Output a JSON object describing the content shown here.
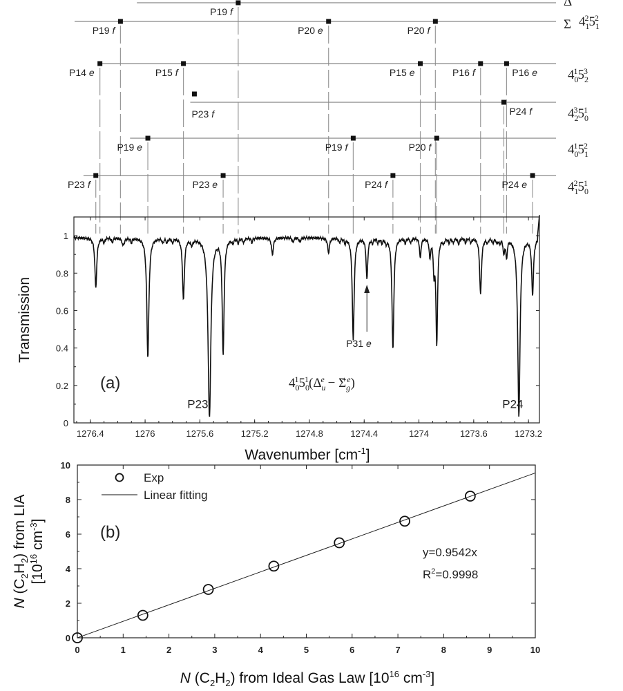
{
  "chart_data": [
    {
      "type": "line",
      "panel_label": "(a)",
      "xlabel_main": "Wavenumber [cm",
      "xlabel_sup": "-1",
      "xlabel_end": "]",
      "ylabel": "Transmission",
      "xlim": [
        1276.52,
        1273.12
      ],
      "ylim": [
        0,
        1.1
      ],
      "x_ticks": [
        {
          "v": 1276.4,
          "t": "1276.4"
        },
        {
          "v": 1276.0,
          "t": "1276"
        },
        {
          "v": 1275.6,
          "t": "1275.6"
        },
        {
          "v": 1275.2,
          "t": "1275.2"
        },
        {
          "v": 1274.8,
          "t": "1274.8"
        },
        {
          "v": 1274.4,
          "t": "1274.4"
        },
        {
          "v": 1274.0,
          "t": "1274"
        },
        {
          "v": 1273.6,
          "t": "1273.6"
        },
        {
          "v": 1273.2,
          "t": "1273.2"
        }
      ],
      "y_ticks": [
        {
          "v": 0,
          "t": "0"
        },
        {
          "v": 0.2,
          "t": "0.2"
        },
        {
          "v": 0.4,
          "t": "0.4"
        },
        {
          "v": 0.6,
          "t": "0.6"
        },
        {
          "v": 0.8,
          "t": "0.8"
        },
        {
          "v": 1.0,
          "t": "1"
        }
      ],
      "baseline": 0.99,
      "absorption_lines": [
        {
          "x": 1276.36,
          "depth": 0.27,
          "w": 0.008
        },
        {
          "x": 1276.16,
          "depth": 0.04,
          "w": 0.01
        },
        {
          "x": 1275.98,
          "depth": 0.64,
          "w": 0.009
        },
        {
          "x": 1275.72,
          "depth": 0.33,
          "w": 0.008
        },
        {
          "x": 1275.66,
          "depth": 0.03,
          "w": 0.01
        },
        {
          "x": 1275.53,
          "depth": 0.96,
          "w": 0.012
        },
        {
          "x": 1275.43,
          "depth": 0.62,
          "w": 0.008
        },
        {
          "x": 1275.07,
          "depth": 0.09,
          "w": 0.008
        },
        {
          "x": 1274.66,
          "depth": 0.08,
          "w": 0.008
        },
        {
          "x": 1274.48,
          "depth": 0.55,
          "w": 0.008
        },
        {
          "x": 1274.38,
          "depth": 0.22,
          "w": 0.007
        },
        {
          "x": 1274.19,
          "depth": 0.6,
          "w": 0.008
        },
        {
          "x": 1273.99,
          "depth": 0.11,
          "w": 0.006
        },
        {
          "x": 1273.92,
          "depth": 0.1,
          "w": 0.006
        },
        {
          "x": 1273.89,
          "depth": 0.17,
          "w": 0.006
        },
        {
          "x": 1273.87,
          "depth": 0.57,
          "w": 0.007
        },
        {
          "x": 1273.71,
          "depth": 0.03,
          "w": 0.008
        },
        {
          "x": 1273.55,
          "depth": 0.3,
          "w": 0.008
        },
        {
          "x": 1273.38,
          "depth": 0.08,
          "w": 0.006
        },
        {
          "x": 1273.36,
          "depth": 0.1,
          "w": 0.006
        },
        {
          "x": 1273.27,
          "depth": 0.95,
          "w": 0.01
        },
        {
          "x": 1273.17,
          "depth": 0.3,
          "w": 0.008
        }
      ],
      "small_lines": [
        1276.3,
        1276.24,
        1276.1,
        1275.87,
        1275.84,
        1275.8,
        1275.36,
        1275.32,
        1275.28,
        1275.22,
        1274.92,
        1274.87,
        1274.58,
        1274.54,
        1274.34,
        1274.3,
        1274.27,
        1274.24,
        1274.1,
        1274.06,
        1273.82,
        1273.78,
        1273.75,
        1273.66,
        1273.62,
        1273.5,
        1273.46,
        1273.43,
        1273.41
      ],
      "peak_labels": [
        {
          "x": 1275.53,
          "dx": -32,
          "y": 0.08,
          "t": "P23"
        },
        {
          "x": 1273.27,
          "dx": -24,
          "y": 0.08,
          "t": "P24"
        }
      ],
      "arrow_label": {
        "x": 1274.38,
        "t": "P31 ",
        "t_italic": "e"
      },
      "band_label": {
        "base": "4",
        "sub1": "0",
        "sup1": "1",
        "mid": "5",
        "sub2": "0",
        "sup2": "1",
        "paren": "(Δ",
        "sub3": "u",
        "sup3": "e",
        "minus": " − Σ",
        "sub4": "g",
        "sup4": "+e",
        "close": ")"
      },
      "branch_levels": [
        {
          "y": 4,
          "x_start": 1276.05,
          "label_upper": "Δ",
          "label_lower": "",
          "state": {
            "n1": "4",
            "s1": "1",
            "p1": "2",
            "n2": "5",
            "s2": "1",
            "p2": "2"
          },
          "show_state": false,
          "markers": [
            {
              "x": 1275.32,
              "t": "P19 ",
              "ti": "f",
              "side": "left"
            }
          ]
        },
        {
          "y": 31,
          "x_start": 1276.52,
          "label_upper": "",
          "label_lower": "Σ",
          "state": {
            "n1": "4",
            "s1": "1",
            "p1": "2",
            "n2": "5",
            "s2": "1",
            "p2": "2"
          },
          "show_state": true,
          "markers": [
            {
              "x": 1276.18,
              "t": "P19 ",
              "ti": "f",
              "side": "left"
            },
            {
              "x": 1274.66,
              "t": "P20 ",
              "ti": "e",
              "side": "left"
            },
            {
              "x": 1273.88,
              "t": "P20 ",
              "ti": "f",
              "side": "left"
            }
          ]
        },
        {
          "y": 92,
          "x_start": 1276.33,
          "label_upper": "",
          "label_lower": "",
          "state": {
            "n1": "4",
            "s1": "0",
            "p1": "1",
            "n2": "5",
            "s2": "2",
            "p2": "3"
          },
          "show_state": true,
          "markers": [
            {
              "x": 1276.33,
              "t": "P14 ",
              "ti": "e",
              "side": "left"
            },
            {
              "x": 1275.72,
              "t": "P15 ",
              "ti": "f",
              "side": "left"
            },
            {
              "x": 1273.99,
              "t": "P15 ",
              "ti": "e",
              "side": "left"
            },
            {
              "x": 1273.55,
              "t": "P16 ",
              "ti": "f",
              "side": "left"
            },
            {
              "x": 1273.36,
              "t": "P16 ",
              "ti": "e",
              "side": "right"
            }
          ]
        },
        {
          "y": 148,
          "x_start": 1275.66,
          "label_upper": "",
          "label_lower": "",
          "state": {
            "n1": "4",
            "s1": "2",
            "p1": "3",
            "n2": "5",
            "s2": "0",
            "p2": "1"
          },
          "show_state": true,
          "markers": [
            {
              "x": 1273.38,
              "t": "P24 ",
              "ti": "f",
              "side": "right"
            }
          ]
        },
        {
          "y": 200,
          "x_start": 1276.1,
          "label_upper": "",
          "label_lower": "",
          "state": {
            "n1": "4",
            "s1": "0",
            "p1": "1",
            "n2": "5",
            "s2": "1",
            "p2": "2"
          },
          "show_state": true,
          "markers": [
            {
              "x": 1275.98,
              "t": "P19 ",
              "ti": "e",
              "side": "left"
            },
            {
              "x": 1274.48,
              "t": "P19 ",
              "ti": "f",
              "side": "left"
            },
            {
              "x": 1273.87,
              "t": "P20 ",
              "ti": "f",
              "side": "left"
            }
          ]
        },
        {
          "y": 254,
          "x_start": 1276.44,
          "label_upper": "",
          "label_lower": "",
          "state": {
            "n1": "4",
            "s1": "1",
            "p1": "2",
            "n2": "5",
            "s2": "0",
            "p2": "1"
          },
          "show_state": true,
          "markers": [
            {
              "x": 1276.36,
              "t": "P23 ",
              "ti": "f",
              "side": "left"
            },
            {
              "x": 1275.43,
              "t": "P23 ",
              "ti": "e",
              "side": "left"
            },
            {
              "x": 1274.19,
              "t": "P24 ",
              "ti": "f",
              "side": "left"
            },
            {
              "x": 1273.17,
              "t": "P24 ",
              "ti": "e",
              "side": "left"
            }
          ]
        }
      ],
      "extra_marker": {
        "x": 1275.64,
        "y": 136,
        "t": "P23 ",
        "ti": "f"
      }
    },
    {
      "type": "scatter",
      "panel_label": "(b)",
      "xlabel_prefix": "N",
      "xlabel_main": " (C",
      "xlabel_sub": "2",
      "xlabel_mid": "H",
      "xlabel_sub2": "2",
      "xlabel_rest": ") from Ideal Gas Law [10",
      "xlabel_sup": "16",
      "xlabel_unit": " cm",
      "xlabel_sup2": "-3",
      "xlabel_end": "]",
      "ylabel_line1_prefix": "N",
      "ylabel_line1_main": " (C",
      "ylabel_line1_sub": "2",
      "ylabel_line1_mid": "H",
      "ylabel_line1_sub2": "2",
      "ylabel_line1_rest": ") from LIA",
      "ylabel_line2_main": "[10",
      "ylabel_line2_sup": "16",
      "ylabel_line2_unit": " cm",
      "ylabel_line2_sup2": "-3",
      "ylabel_line2_end": "]",
      "xlim": [
        0,
        10
      ],
      "ylim": [
        0,
        10
      ],
      "x_ticks": [
        "0",
        "1",
        "2",
        "3",
        "4",
        "5",
        "6",
        "7",
        "8",
        "9",
        "10"
      ],
      "y_ticks": [
        "0",
        "2",
        "4",
        "6",
        "8",
        "10"
      ],
      "series": [
        {
          "name": "Exp",
          "x": [
            0.0,
            1.43,
            2.86,
            4.29,
            5.72,
            7.15,
            8.58
          ],
          "y": [
            0.0,
            1.3,
            2.8,
            4.15,
            5.5,
            6.75,
            8.2
          ]
        },
        {
          "name": "Linear fitting",
          "slope": 0.9542
        }
      ],
      "fit_text": "y=0.9542x",
      "r2_main": "R",
      "r2_sup": "2",
      "r2_val": "=0.9998"
    }
  ]
}
